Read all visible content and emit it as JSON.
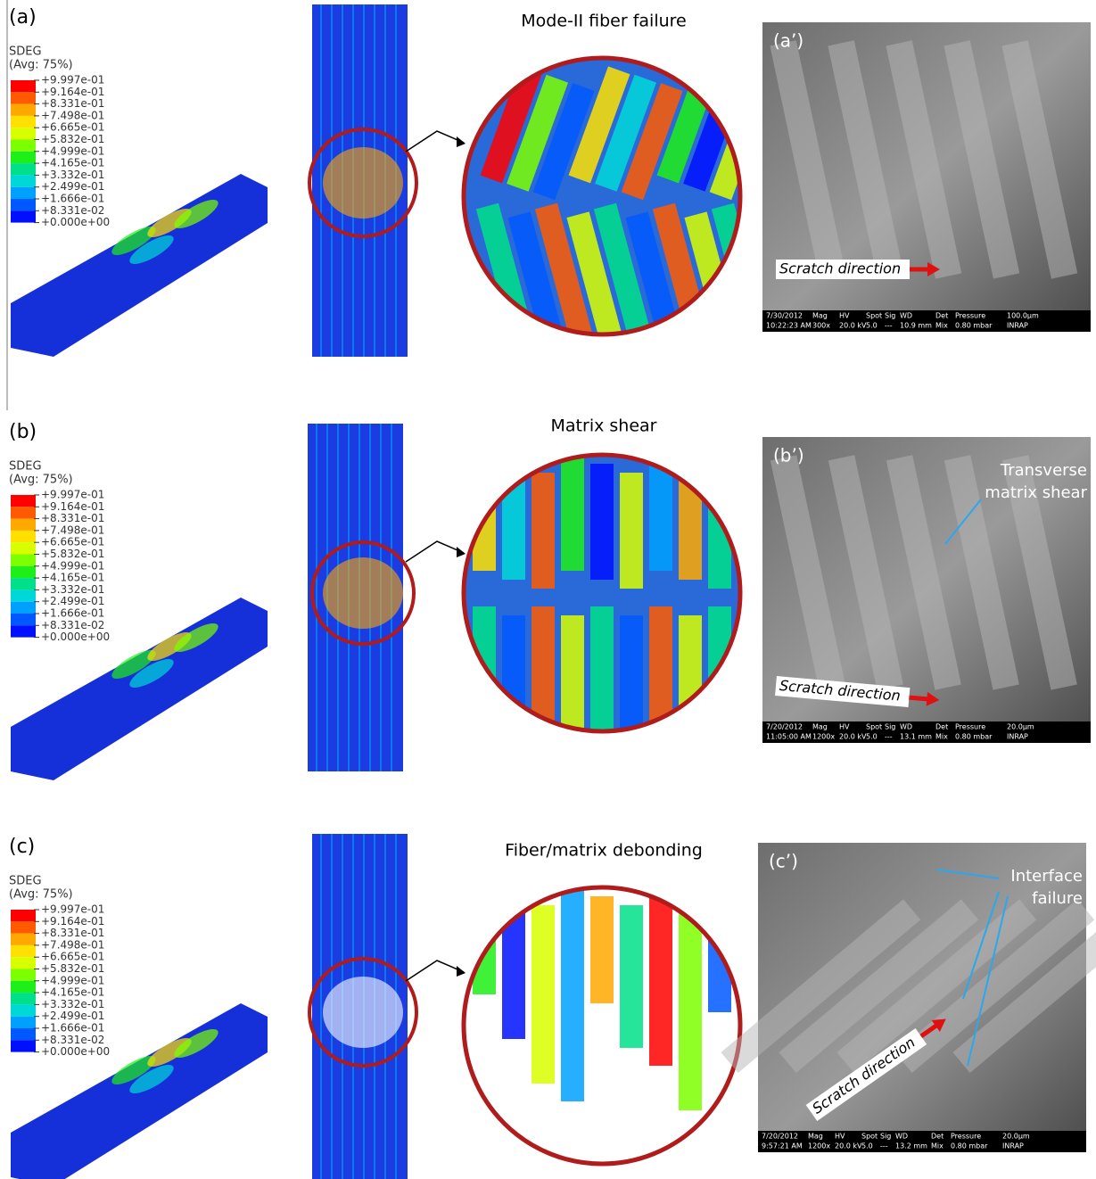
{
  "colormap": [
    "#ff0000",
    "#ff5a00",
    "#ffa800",
    "#ffe000",
    "#d8ff00",
    "#7cff00",
    "#1eef18",
    "#00e08a",
    "#00d8d8",
    "#00a0ff",
    "#0058ff",
    "#0010ff"
  ],
  "rows": [
    {
      "label": "(a)",
      "legend": {
        "title": "SDEG",
        "subtitle": "(Avg: 75%)",
        "levels": [
          "+9.997e-01",
          "+9.164e-01",
          "+8.331e-01",
          "+7.498e-01",
          "+6.665e-01",
          "+5.832e-01",
          "+4.999e-01",
          "+4.165e-01",
          "+3.332e-01",
          "+2.499e-01",
          "+1.666e-01",
          "+8.331e-02",
          "+0.000e+00"
        ]
      },
      "caption": "Mode-II fiber failure",
      "sem": {
        "label": "(a’)",
        "scratch": "Scratch direction",
        "info": [
          [
            "7/30/2012",
            "10:22:23 AM"
          ],
          [
            "Mag",
            "300x"
          ],
          [
            "HV",
            "20.0 kV"
          ],
          [
            "Spot",
            "5.0"
          ],
          [
            "Sig",
            "---"
          ],
          [
            "WD",
            "10.9 mm"
          ],
          [
            "Det",
            "Mix"
          ],
          [
            "Pressure",
            "0.80 mbar"
          ],
          [
            "100.0µm",
            "INRAP"
          ]
        ]
      }
    },
    {
      "label": "(b)",
      "legend": {
        "title": "SDEG",
        "subtitle": "(Avg: 75%)",
        "levels": [
          "+9.997e-01",
          "+9.164e-01",
          "+8.331e-01",
          "+7.498e-01",
          "+6.665e-01",
          "+5.832e-01",
          "+4.999e-01",
          "+4.165e-01",
          "+3.332e-01",
          "+2.499e-01",
          "+1.666e-01",
          "+8.331e-02",
          "+0.000e+00"
        ]
      },
      "caption": "Matrix shear",
      "sem": {
        "label": "(b’)",
        "scratch": "Scratch direction",
        "note": [
          "Transverse",
          "matrix shear"
        ],
        "info": [
          [
            "7/20/2012",
            "11:05:00 AM"
          ],
          [
            "Mag",
            "1200x"
          ],
          [
            "HV",
            "20.0 kV"
          ],
          [
            "Spot",
            "5.0"
          ],
          [
            "Sig",
            "---"
          ],
          [
            "WD",
            "13.1 mm"
          ],
          [
            "Det",
            "Mix"
          ],
          [
            "Pressure",
            "0.80 mbar"
          ],
          [
            "20.0µm",
            "INRAP"
          ]
        ]
      }
    },
    {
      "label": "(c)",
      "legend": {
        "title": "SDEG",
        "subtitle": "(Avg: 75%)",
        "levels": [
          "+9.997e-01",
          "+9.164e-01",
          "+8.331e-01",
          "+7.498e-01",
          "+6.665e-01",
          "+5.832e-01",
          "+4.999e-01",
          "+4.165e-01",
          "+3.332e-01",
          "+2.499e-01",
          "+1.666e-01",
          "+8.331e-02",
          "+0.000e+00"
        ]
      },
      "caption": "Fiber/matrix debonding",
      "sem": {
        "label": "(c’)",
        "scratch": "Scratch direction",
        "note": [
          "Interface",
          "failure"
        ],
        "info": [
          [
            "7/20/2012",
            "9:57:21 AM"
          ],
          [
            "Mag",
            "1200x"
          ],
          [
            "HV",
            "20.0 kV"
          ],
          [
            "Spot",
            "5.0"
          ],
          [
            "Sig",
            "---"
          ],
          [
            "WD",
            "13.2 mm"
          ],
          [
            "Det",
            "Mix"
          ],
          [
            "Pressure",
            "0.80 mbar"
          ],
          [
            "20.0µm",
            "INRAP"
          ]
        ]
      }
    }
  ]
}
